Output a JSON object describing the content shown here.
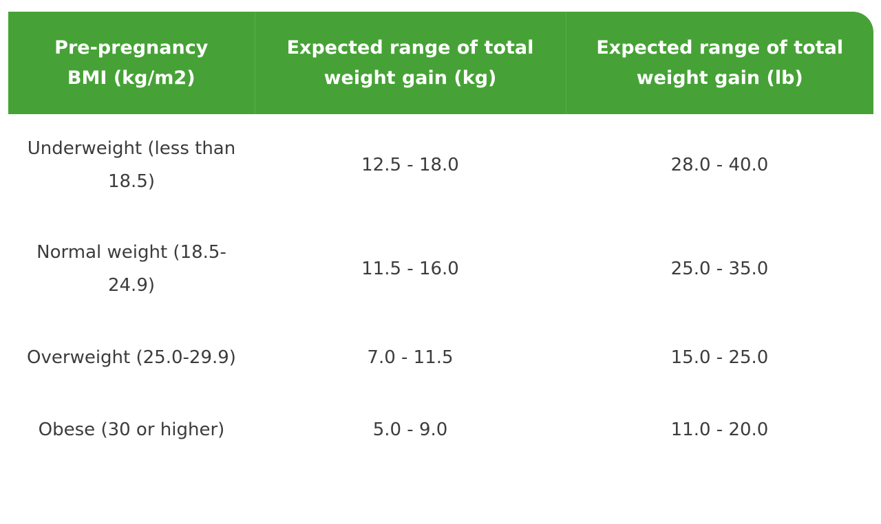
{
  "table": {
    "headers": [
      "Pre-pregnancy BMI (kg/m2)",
      "Expected range of total weight gain (kg)",
      "Expected range of total weight gain (lb)"
    ],
    "rows": [
      [
        "Underweight (less than 18.5)",
        "12.5 - 18.0",
        "28.0 - 40.0"
      ],
      [
        "Normal weight (18.5-24.9)",
        "11.5 - 16.0",
        "25.0 - 35.0"
      ],
      [
        "Overweight (25.0-29.9)",
        "7.0 - 11.5",
        "15.0 - 25.0"
      ],
      [
        "Obese (30 or higher)",
        "5.0 - 9.0",
        "11.0 - 20.0"
      ]
    ]
  },
  "colors": {
    "header_bg": "#46a236",
    "header_text": "#ffffff",
    "body_text": "#3c3c3c"
  }
}
